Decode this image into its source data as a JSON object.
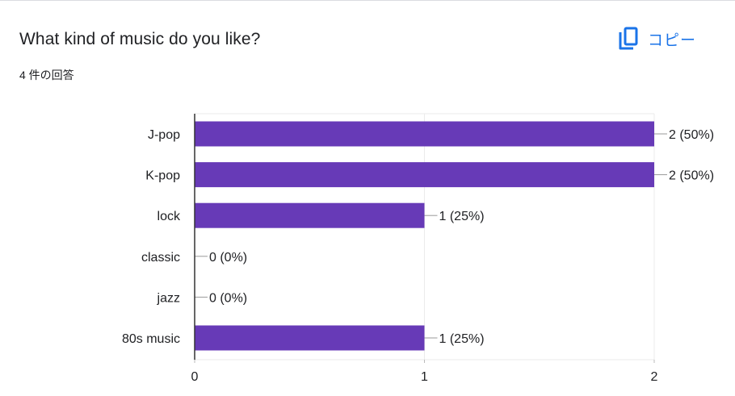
{
  "question": {
    "title": "What kind of music do you like?",
    "response_count": "4 件の回答"
  },
  "toolbar": {
    "copy_label": "コピー",
    "copy_icon": "copy-icon"
  },
  "colors": {
    "bar": "#673ab7",
    "accent": "#1a73e8",
    "grid": "#ebebeb",
    "axis": "#333333",
    "text": "#202124"
  },
  "chart_data": {
    "type": "bar",
    "orientation": "horizontal",
    "categories": [
      "J-pop",
      "K-pop",
      "lock",
      "classic",
      "jazz",
      "80s music"
    ],
    "values": [
      2,
      2,
      1,
      0,
      0,
      1
    ],
    "data_labels": [
      "2 (50%)",
      "2 (50%)",
      "1 (25%)",
      "0 (0%)",
      "0 (0%)",
      "1 (25%)"
    ],
    "x_ticks": [
      "0",
      "1",
      "2"
    ],
    "xlim": [
      0,
      2
    ],
    "grid": true,
    "legend": "none",
    "title": "",
    "xlabel": "",
    "ylabel": ""
  }
}
